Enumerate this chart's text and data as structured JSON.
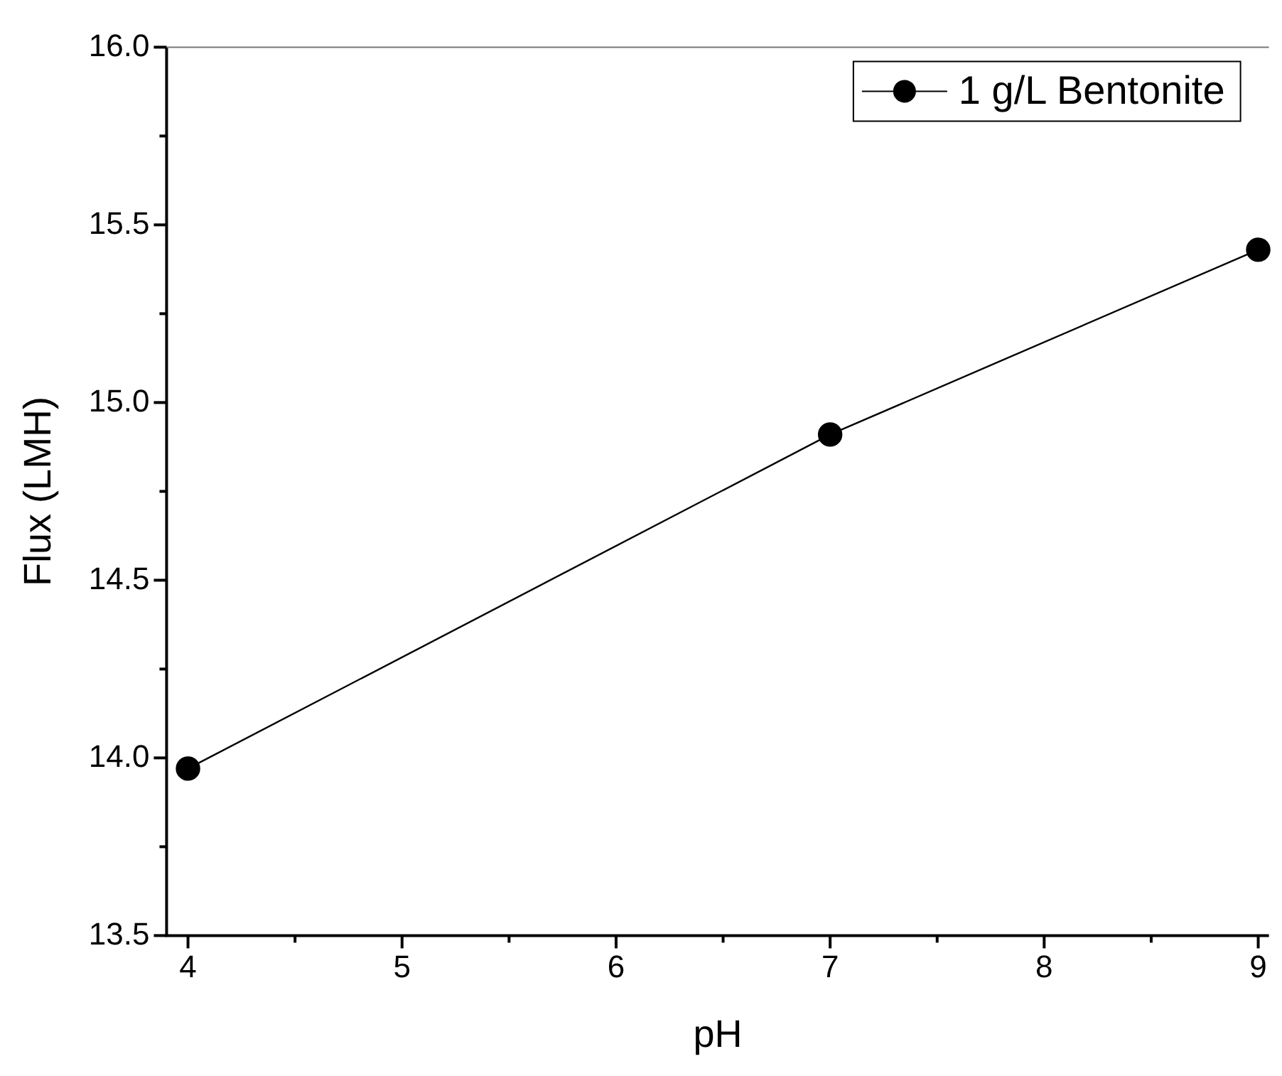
{
  "chart_data": {
    "type": "line",
    "xlabel": "pH",
    "ylabel": "Flux (LMH)",
    "x": [
      4,
      7,
      9
    ],
    "series": [
      {
        "name": "1 g/L Bentonite",
        "color": "#000000",
        "values": [
          13.97,
          14.91,
          15.43
        ]
      }
    ],
    "xlim": [
      3.9,
      9.05
    ],
    "xticks": [
      4,
      {
        "value": 4.5,
        "label": null
      },
      5,
      {
        "value": 5.5,
        "label": null
      },
      6,
      {
        "value": 6.5,
        "label": null
      },
      7,
      {
        "value": 7.5,
        "label": null
      },
      8,
      {
        "value": 8.5,
        "label": null
      },
      9
    ],
    "ylim": [
      13.5,
      16.0
    ],
    "yticks": [
      "13.5",
      {
        "value": 13.75,
        "label": null
      },
      {
        "value": 14.0,
        "label": "14.0"
      },
      {
        "value": 14.25,
        "label": null
      },
      14.5,
      {
        "value": 14.75,
        "label": null
      },
      {
        "value": 15.0,
        "label": "15.0"
      },
      {
        "value": 15.25,
        "label": null
      },
      15.5,
      {
        "value": 15.75,
        "label": null
      },
      {
        "value": 16.0,
        "label": "16.0"
      }
    ],
    "grid": false,
    "legend": "top right",
    "marker": "circle",
    "line_style": "solid"
  }
}
